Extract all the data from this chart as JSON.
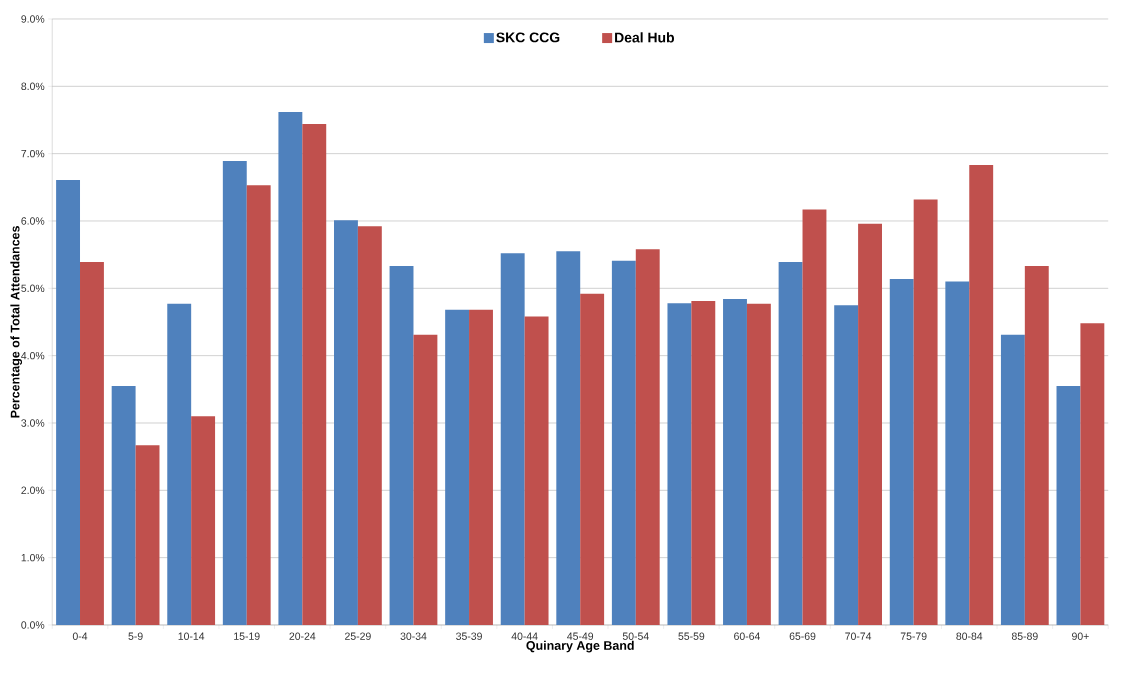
{
  "chart_data": {
    "type": "bar",
    "xlabel": "Quinary Age Band",
    "ylabel": "Percentage of Total Attendances",
    "categories": [
      "0-4",
      "5-9",
      "10-14",
      "15-19",
      "20-24",
      "25-29",
      "30-34",
      "35-39",
      "40-44",
      "45-49",
      "50-54",
      "55-59",
      "60-64",
      "65-69",
      "70-74",
      "75-79",
      "80-84",
      "85-89",
      "90+"
    ],
    "series": [
      {
        "name": "SKC CCG",
        "color": "#4f81bd",
        "values": [
          6.61,
          3.55,
          4.77,
          6.89,
          7.62,
          6.01,
          5.33,
          4.68,
          5.52,
          5.55,
          5.41,
          4.78,
          4.84,
          5.39,
          4.75,
          5.14,
          5.1,
          4.31,
          3.55
        ]
      },
      {
        "name": "Deal Hub",
        "color": "#c0504d",
        "values": [
          5.39,
          2.67,
          3.1,
          6.53,
          7.44,
          5.92,
          4.31,
          4.68,
          4.58,
          4.92,
          5.58,
          4.81,
          4.77,
          6.17,
          5.96,
          6.32,
          6.83,
          5.33,
          4.48
        ]
      }
    ],
    "ylim": [
      0,
      9
    ],
    "yticks": [
      {
        "value": 0,
        "label": "0.0%"
      },
      {
        "value": 1,
        "label": "1.0%"
      },
      {
        "value": 2,
        "label": "2.0%"
      },
      {
        "value": 3,
        "label": "3.0%"
      },
      {
        "value": 4,
        "label": "4.0%"
      },
      {
        "value": 5,
        "label": "5.0%"
      },
      {
        "value": 6,
        "label": "6.0%"
      },
      {
        "value": 7,
        "label": "7.0%"
      },
      {
        "value": 8,
        "label": "8.0%"
      },
      {
        "value": 9,
        "label": "9.0%"
      }
    ],
    "grid": "y",
    "legend": "top"
  }
}
